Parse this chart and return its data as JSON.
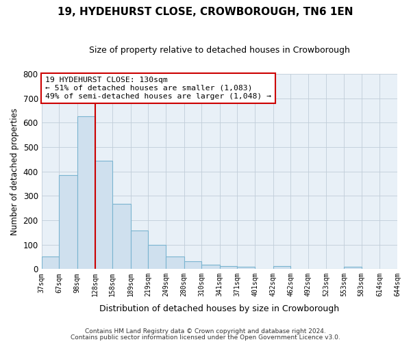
{
  "title": "19, HYDEHURST CLOSE, CROWBOROUGH, TN6 1EN",
  "subtitle": "Size of property relative to detached houses in Crowborough",
  "xlabel": "Distribution of detached houses by size in Crowborough",
  "ylabel": "Number of detached properties",
  "bar_color": "#cfe0ee",
  "bar_edge_color": "#7ab4d0",
  "plot_bg_color": "#e8f0f7",
  "fig_bg_color": "#ffffff",
  "grid_color": "#c0cdd8",
  "bin_edges": [
    37,
    67,
    98,
    128,
    158,
    189,
    219,
    249,
    280,
    310,
    341,
    371,
    401,
    432,
    462,
    492,
    523,
    553,
    583,
    614,
    644
  ],
  "bin_labels": [
    "37sqm",
    "67sqm",
    "98sqm",
    "128sqm",
    "158sqm",
    "189sqm",
    "219sqm",
    "249sqm",
    "280sqm",
    "310sqm",
    "341sqm",
    "371sqm",
    "401sqm",
    "432sqm",
    "462sqm",
    "492sqm",
    "523sqm",
    "553sqm",
    "583sqm",
    "614sqm",
    "644sqm"
  ],
  "counts": [
    50,
    385,
    625,
    445,
    268,
    157,
    99,
    52,
    31,
    18,
    11,
    10,
    0,
    12,
    0,
    0,
    0,
    8,
    0,
    0,
    0
  ],
  "vline_x": 128,
  "vline_color": "#cc0000",
  "annotation_line1": "19 HYDEHURST CLOSE: 130sqm",
  "annotation_line2": "← 51% of detached houses are smaller (1,083)",
  "annotation_line3": "49% of semi-detached houses are larger (1,048) →",
  "annotation_box_color": "#ffffff",
  "annotation_box_edge": "#cc0000",
  "ylim": [
    0,
    800
  ],
  "yticks": [
    0,
    100,
    200,
    300,
    400,
    500,
    600,
    700,
    800
  ],
  "footer1": "Contains HM Land Registry data © Crown copyright and database right 2024.",
  "footer2": "Contains public sector information licensed under the Open Government Licence v3.0."
}
